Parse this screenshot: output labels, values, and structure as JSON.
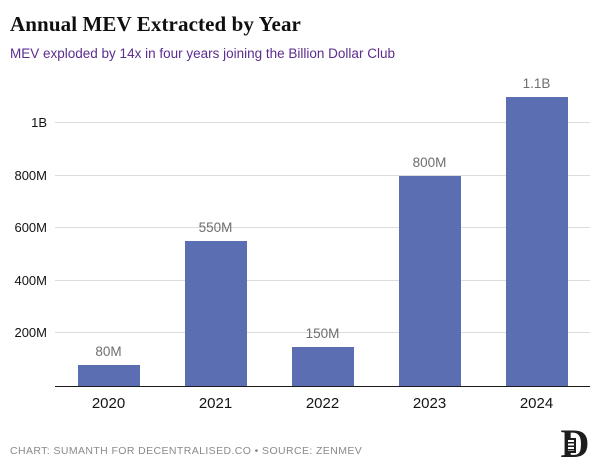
{
  "header": {
    "title": "Annual MEV Extracted by Year",
    "subtitle": "MEV exploded by 14x in four years joining the Billion Dollar Club"
  },
  "chart_data": {
    "type": "bar",
    "title": "Annual MEV Extracted by Year",
    "subtitle": "MEV exploded by 14x in four years joining the Billion Dollar Club",
    "categories": [
      "2020",
      "2021",
      "2022",
      "2023",
      "2024"
    ],
    "values": [
      80,
      550,
      150,
      800,
      1100
    ],
    "value_labels": [
      "80M",
      "550M",
      "150M",
      "800M",
      "1.1B"
    ],
    "y_ticks": [
      {
        "value": 200,
        "label": "200M"
      },
      {
        "value": 400,
        "label": "400M"
      },
      {
        "value": 600,
        "label": "600M"
      },
      {
        "value": 800,
        "label": "800M"
      },
      {
        "value": 1000,
        "label": "1B"
      }
    ],
    "ylim": [
      0,
      1133
    ],
    "xlabel": "",
    "ylabel": "",
    "grid": "horizontal",
    "legend": "none",
    "bar_color": "#5c6eb2"
  },
  "footer": {
    "credit": "CHART: SUMANTH FOR DECENTRALISED.CO • SOURCE: ZENMEV",
    "logo_letter": "D"
  },
  "colors": {
    "title_text": "#0f0f0f",
    "subtitle_text": "#5b2d8f",
    "bar": "#5c6eb2",
    "gridline": "#dcdcdc",
    "axis_line": "#1a1a1a",
    "ytick_text": "#141414",
    "value_label_text": "#6e6e6e",
    "xlabel_text": "#141414",
    "credit_text": "#8a8a8a",
    "logo": "#1d1d1d"
  }
}
